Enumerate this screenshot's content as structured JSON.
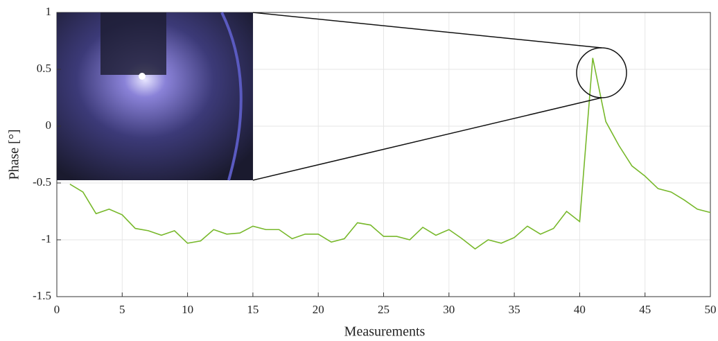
{
  "chart_data": {
    "type": "line",
    "xlabel": "Measurements",
    "ylabel": "Phase [°]",
    "x": [
      1,
      2,
      3,
      4,
      5,
      6,
      7,
      8,
      9,
      10,
      11,
      12,
      13,
      14,
      15,
      16,
      17,
      18,
      19,
      20,
      21,
      22,
      23,
      24,
      25,
      26,
      27,
      28,
      29,
      30,
      31,
      32,
      33,
      34,
      35,
      36,
      37,
      38,
      39,
      40,
      41,
      42,
      43,
      44,
      45,
      46,
      47,
      48,
      49,
      50
    ],
    "values": [
      -0.51,
      -0.58,
      -0.77,
      -0.73,
      -0.78,
      -0.9,
      -0.92,
      -0.96,
      -0.92,
      -1.03,
      -1.01,
      -0.91,
      -0.95,
      -0.94,
      -0.88,
      -0.91,
      -0.91,
      -0.99,
      -0.95,
      -0.95,
      -1.02,
      -0.99,
      -0.85,
      -0.87,
      -0.97,
      -0.97,
      -1.0,
      -0.89,
      -0.96,
      -0.91,
      -0.99,
      -1.08,
      -1.0,
      -1.03,
      -0.98,
      -0.88,
      -0.95,
      -0.9,
      -0.75,
      -0.84,
      0.6,
      0.04,
      -0.17,
      -0.35,
      -0.44,
      -0.55,
      -0.58,
      -0.65,
      -0.73,
      -0.76
    ],
    "color": "#77b82a",
    "xlim": [
      0,
      50
    ],
    "xticks": [
      0,
      5,
      10,
      15,
      20,
      25,
      30,
      35,
      40,
      45,
      50
    ],
    "ylim": [
      -1.5,
      1
    ],
    "yticks": [
      -1.5,
      -1,
      -0.5,
      0,
      0.5,
      1
    ],
    "grid": true
  }
}
